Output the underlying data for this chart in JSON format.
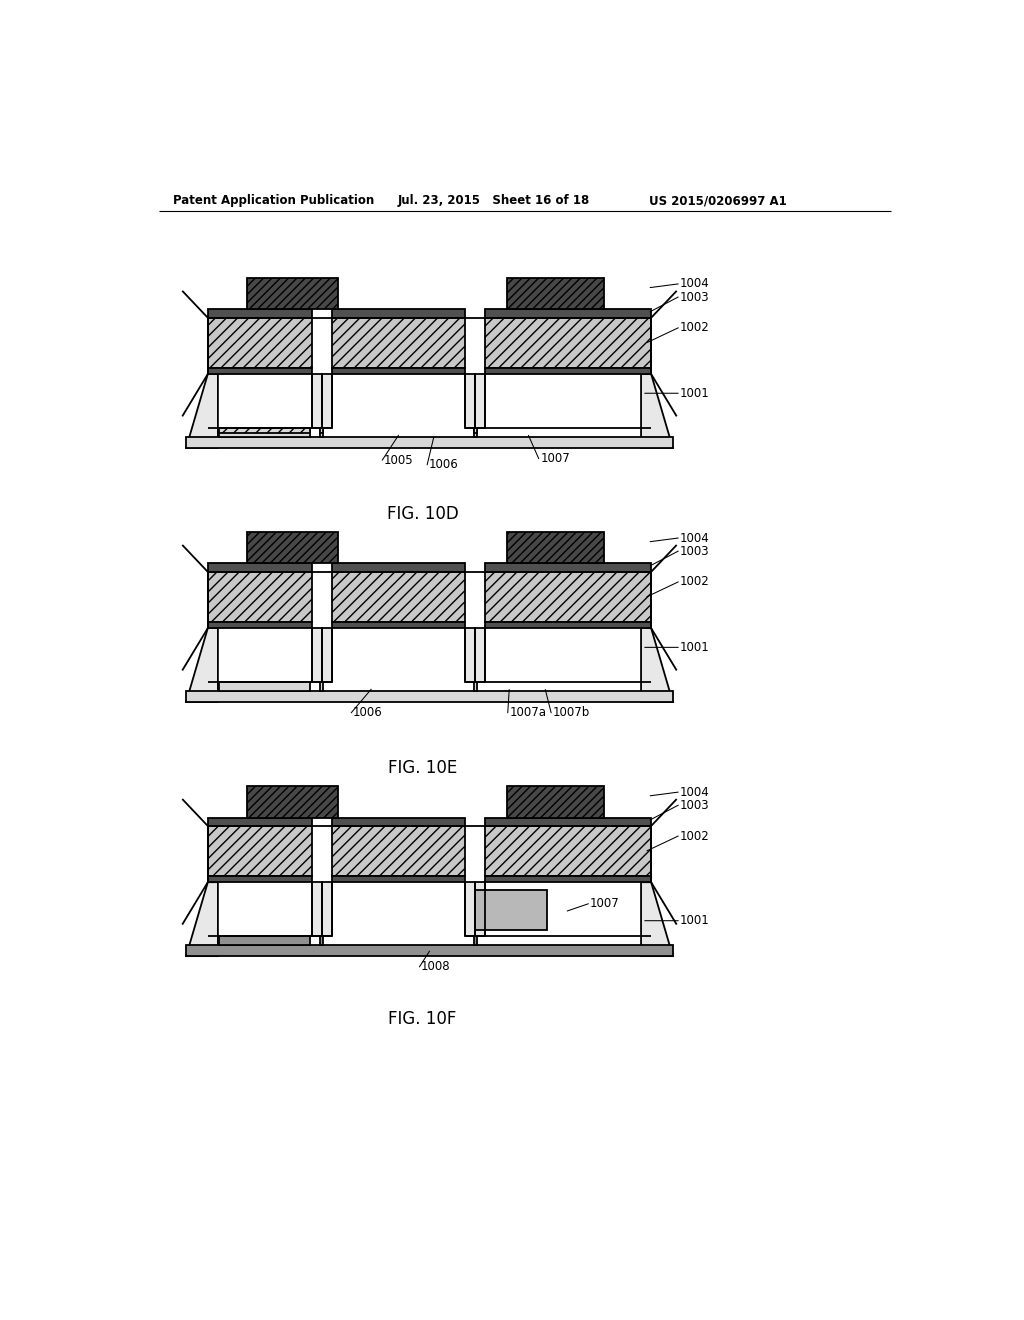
{
  "bg_color": "#ffffff",
  "header_left": "Patent Application Publication",
  "header_mid": "Jul. 23, 2015   Sheet 16 of 18",
  "header_right": "US 2015/0206997 A1",
  "fig10D_label": "FIG. 10D",
  "fig10E_label": "FIG. 10E",
  "fig10F_label": "FIG. 10F",
  "callout_fontsize": 8.5,
  "figlabel_fontsize": 12,
  "header_fontsize": 8.5,
  "lw": 1.3,
  "cell_hatch_color": "#c8c8c8",
  "metal_hatch_color": "#484848",
  "substrate_color": "#e8e8e8",
  "thin_layer_color": "#505050",
  "white": "#ffffff",
  "ledge_color": "#d8d8d8",
  "via_metal_color": "#b8b8b8",
  "bottom_metal_color": "#909090"
}
